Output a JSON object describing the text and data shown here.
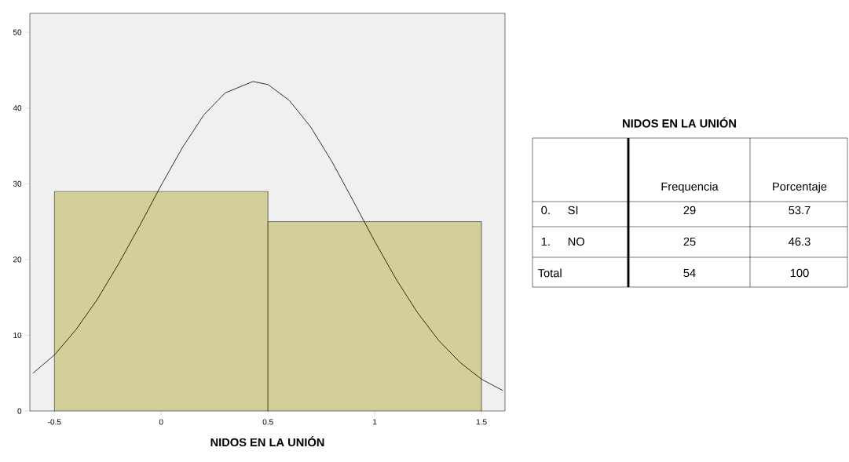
{
  "chart_data": [
    {
      "type": "histogram",
      "xlabel": "NIDOS EN LA UNIÓN",
      "bins": [
        -0.5,
        0.5,
        1.5
      ],
      "values": [
        29,
        25
      ],
      "color": "#d3cf98",
      "series": [
        {
          "type": "line",
          "color": "#000000",
          "x": [
            -0.6,
            -0.5,
            -0.4,
            -0.3,
            -0.2,
            -0.1,
            0,
            0.1,
            0.2,
            0.3,
            0.43,
            0.5,
            0.6,
            0.7,
            0.8,
            0.9,
            1.0,
            1.1,
            1.2,
            1.3,
            1.4,
            1.5,
            1.6
          ],
          "values": [
            5.0,
            7.4,
            10.7,
            14.7,
            19.4,
            24.5,
            29.8,
            34.8,
            39.1,
            42.0,
            43.5,
            43.1,
            41.0,
            37.5,
            32.9,
            27.7,
            22.4,
            17.4,
            13.0,
            9.3,
            6.4,
            4.2,
            2.7
          ]
        }
      ],
      "xlim": [
        -0.615,
        1.61
      ],
      "ylim": [
        0,
        52.5
      ],
      "xticks": [
        -0.5,
        0,
        0.5,
        1,
        1.5
      ],
      "yticks": [
        0,
        10,
        20,
        30,
        40,
        50
      ],
      "grid": false
    },
    {
      "type": "other",
      "title": "NIDOS EN LA UNIÓN",
      "annotations": [
        "Frequencia",
        "Porcentaje",
        "0.",
        "SI",
        "29",
        "53.7",
        "1.",
        "NO",
        "25",
        "46.3",
        "Total",
        "54",
        "100"
      ]
    }
  ]
}
